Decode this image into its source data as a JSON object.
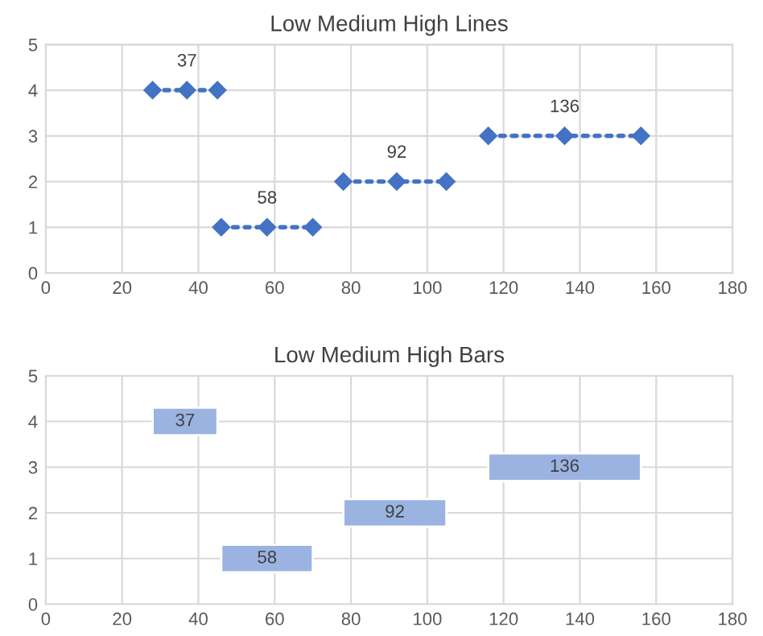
{
  "chart_data": [
    {
      "type": "line",
      "title": "Low Medium High Lines",
      "xlim": [
        0,
        180
      ],
      "xticks": [
        0,
        20,
        40,
        60,
        80,
        100,
        120,
        140,
        160,
        180
      ],
      "ylim": [
        0,
        5
      ],
      "yticks": [
        0,
        1,
        2,
        3,
        4,
        5
      ],
      "grid": true,
      "legend": false,
      "marker": "diamond",
      "line_style": "dotted",
      "series": [
        {
          "color": "#4472c4",
          "x": [
            28,
            37,
            45
          ],
          "values": [
            4,
            4,
            4
          ]
        },
        {
          "color": "#4472c4",
          "x": [
            46,
            58,
            70
          ],
          "values": [
            1,
            1,
            1
          ]
        },
        {
          "color": "#4472c4",
          "x": [
            78,
            92,
            105
          ],
          "values": [
            2,
            2,
            2
          ]
        },
        {
          "color": "#4472c4",
          "x": [
            116,
            136,
            156
          ],
          "values": [
            3,
            3,
            3
          ]
        }
      ],
      "annotations": [
        {
          "text": "37",
          "x": 37,
          "y": 4
        },
        {
          "text": "58",
          "x": 58,
          "y": 1
        },
        {
          "text": "92",
          "x": 92,
          "y": 2
        },
        {
          "text": "136",
          "x": 136,
          "y": 3
        }
      ]
    },
    {
      "type": "bar",
      "orientation": "horizontal",
      "title": "Low Medium High Bars",
      "xlim": [
        0,
        180
      ],
      "xticks": [
        0,
        20,
        40,
        60,
        80,
        100,
        120,
        140,
        160,
        180
      ],
      "ylim": [
        0,
        5
      ],
      "yticks": [
        0,
        1,
        2,
        3,
        4,
        5
      ],
      "grid": true,
      "legend": false,
      "x": [
        1,
        2,
        3,
        4
      ],
      "base": [
        46,
        78,
        116,
        28
      ],
      "values": [
        24,
        27,
        40,
        17
      ],
      "color": "#9bb3e0",
      "annotations": [
        "58",
        "92",
        "136",
        "37"
      ]
    }
  ]
}
